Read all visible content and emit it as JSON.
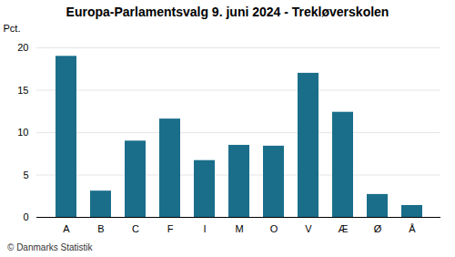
{
  "chart_data": {
    "type": "bar",
    "title": "Europa-Parlamentsvalg 9. juni 2024 - Trekløverskolen",
    "ylabel": "Pct.",
    "caption": "© Danmarks Statistik",
    "categories": [
      "A",
      "B",
      "C",
      "F",
      "I",
      "M",
      "O",
      "V",
      "Æ",
      "Ø",
      "Å"
    ],
    "values": [
      19.0,
      3.1,
      9.0,
      11.6,
      6.7,
      8.5,
      8.4,
      17.0,
      12.4,
      2.7,
      1.4
    ],
    "color": "#1a6e8a",
    "ylim": [
      0,
      20
    ],
    "yticks": [
      0,
      5,
      10,
      15,
      20
    ],
    "grid": true
  }
}
